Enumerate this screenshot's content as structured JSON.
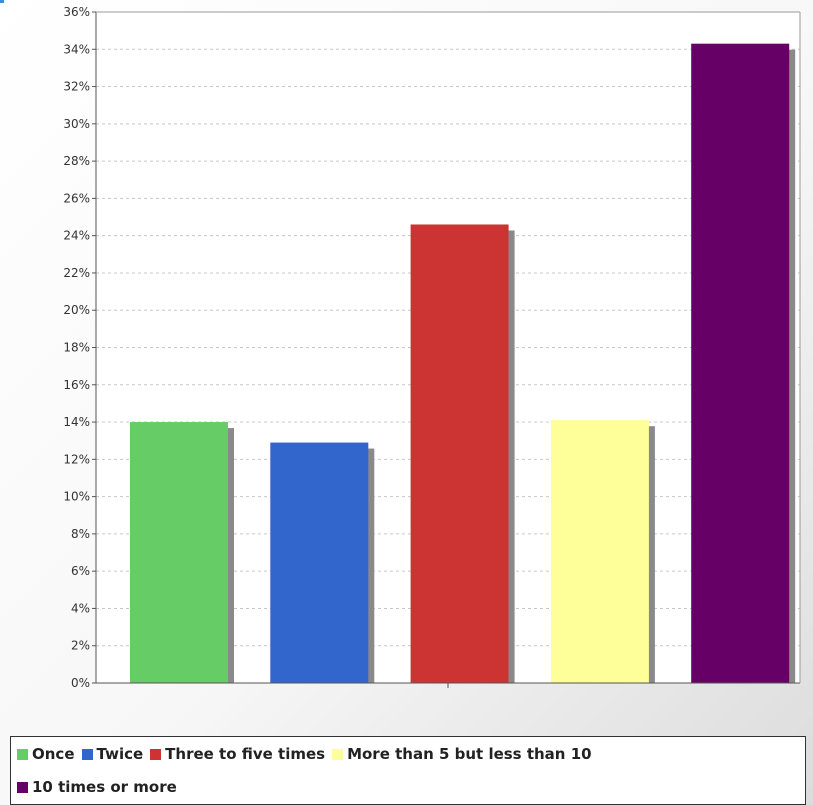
{
  "chart_data": {
    "type": "bar",
    "categories": [
      "Once",
      "Twice",
      "Three to five times",
      "More than 5 but less than 10",
      "10 times or more"
    ],
    "values": [
      14.0,
      12.9,
      24.6,
      14.1,
      34.3
    ],
    "colors": [
      "#66cc66",
      "#3366cc",
      "#cc3333",
      "#ffff99",
      "#660066"
    ],
    "ylim": [
      0,
      36
    ],
    "ytick_step": 2,
    "y_tick_suffix": "%",
    "grid": true,
    "legend_position": "bottom",
    "title": "",
    "xlabel": "",
    "ylabel": ""
  }
}
